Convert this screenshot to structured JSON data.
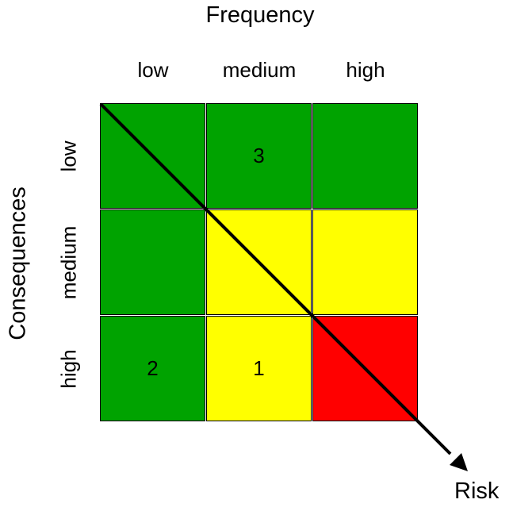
{
  "x_axis": {
    "title": "Frequency",
    "levels": [
      "low",
      "medium",
      "high"
    ]
  },
  "y_axis": {
    "title": "Consequences",
    "levels": [
      "low",
      "medium",
      "high"
    ]
  },
  "matrix": {
    "colors": {
      "green": "#00a300",
      "yellow": "#ffff00",
      "red": "#ff0000"
    },
    "rows": [
      [
        {
          "color": "green",
          "label": ""
        },
        {
          "color": "green",
          "label": "3"
        },
        {
          "color": "green",
          "label": ""
        }
      ],
      [
        {
          "color": "green",
          "label": ""
        },
        {
          "color": "yellow",
          "label": ""
        },
        {
          "color": "yellow",
          "label": ""
        }
      ],
      [
        {
          "color": "green",
          "label": "2"
        },
        {
          "color": "yellow",
          "label": "1"
        },
        {
          "color": "red",
          "label": ""
        }
      ]
    ]
  },
  "arrow_label": "Risk"
}
